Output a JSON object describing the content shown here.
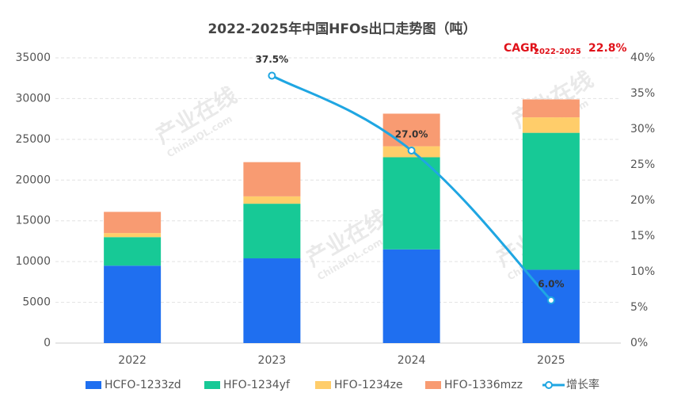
{
  "chart_data": {
    "type": "bar",
    "stacked": true,
    "title": "2022-2025年中国HFOs出口走势图（吨）",
    "annotation": {
      "label": "CAGR",
      "period": "2022-2025",
      "value": "22.8%"
    },
    "watermark": {
      "name": "产业在线",
      "site": "ChinaIOL.com"
    },
    "categories": [
      "2022",
      "2023",
      "2024",
      "2025"
    ],
    "series": [
      {
        "name": "HCFO-1233zd",
        "color": "#1f6ff0",
        "values": [
          9500,
          10400,
          11500,
          9000
        ]
      },
      {
        "name": "HFO-1234yf",
        "color": "#17c996",
        "values": [
          3500,
          6700,
          11300,
          16800
        ]
      },
      {
        "name": "HFO-1234ze",
        "color": "#ffcd6a",
        "values": [
          500,
          900,
          1350,
          1900
        ]
      },
      {
        "name": "HFO-1336mzz",
        "color": "#f89b72",
        "values": [
          2600,
          4200,
          4000,
          2200
        ]
      },
      {
        "name": "增长率",
        "type": "line",
        "axis": "y2",
        "color": "#1fa6e2",
        "values": [
          null,
          37.5,
          27.0,
          6.0
        ],
        "value_labels": [
          null,
          "37.5%",
          "27.0%",
          "6.0%"
        ]
      }
    ],
    "ylim": [
      0,
      35000
    ],
    "yticks": [
      0,
      5000,
      10000,
      15000,
      20000,
      25000,
      30000,
      35000
    ],
    "y2lim": [
      0,
      40
    ],
    "y2ticks": [
      {
        "value": 0,
        "label": "0%"
      },
      {
        "value": 5,
        "label": "5%"
      },
      {
        "value": 10,
        "label": "10%"
      },
      {
        "value": 15,
        "label": "15%"
      },
      {
        "value": 20,
        "label": "20%"
      },
      {
        "value": 25,
        "label": "25%"
      },
      {
        "value": 30,
        "label": "30%"
      },
      {
        "value": 35,
        "label": "35%"
      },
      {
        "value": 40,
        "label": "40%"
      }
    ],
    "grid": true,
    "legend": "bottom"
  }
}
